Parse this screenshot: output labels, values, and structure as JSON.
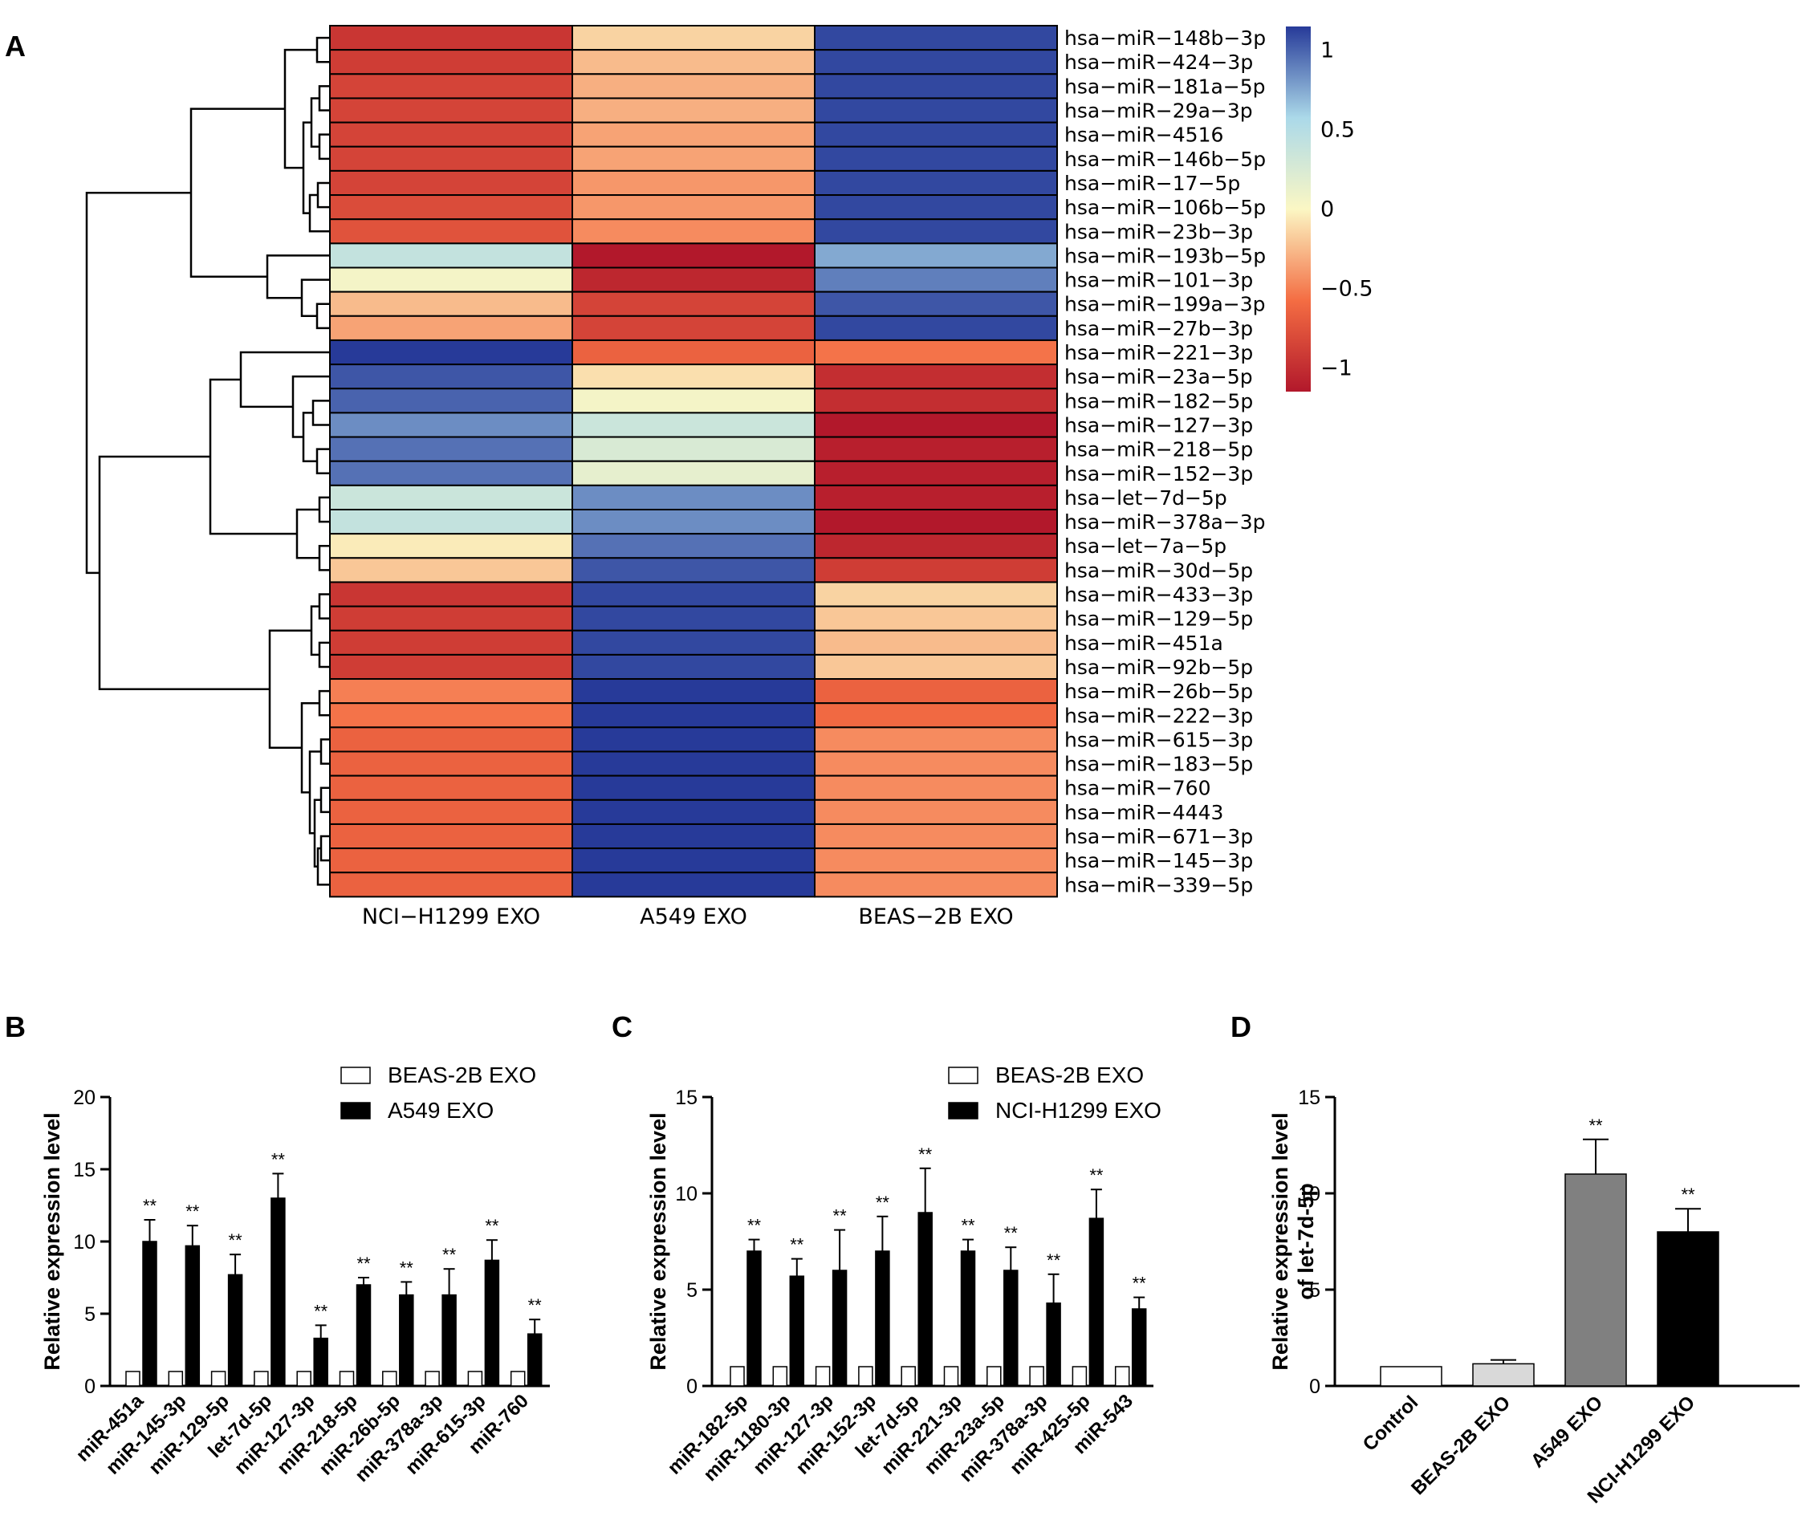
{
  "chart_data": [
    {
      "panel": "A",
      "type": "heatmap",
      "columns": [
        "NCI−H1299 EXO",
        "A549 EXO",
        "BEAS−2B EXO"
      ],
      "rows": [
        {
          "label": "hsa−miR−148b−3p",
          "values": [
            -0.95,
            -0.15,
            1.1
          ]
        },
        {
          "label": "hsa−miR−424−3p",
          "values": [
            -0.9,
            -0.25,
            1.1
          ]
        },
        {
          "label": "hsa−miR−181a−5p",
          "values": [
            -0.85,
            -0.3,
            1.1
          ]
        },
        {
          "label": "hsa−miR−29a−3p",
          "values": [
            -0.85,
            -0.3,
            1.1
          ]
        },
        {
          "label": "hsa−miR−4516",
          "values": [
            -0.85,
            -0.35,
            1.1
          ]
        },
        {
          "label": "hsa−miR−146b−5p",
          "values": [
            -0.85,
            -0.35,
            1.1
          ]
        },
        {
          "label": "hsa−miR−17−5p",
          "values": [
            -0.85,
            -0.4,
            1.1
          ]
        },
        {
          "label": "hsa−miR−106b−5p",
          "values": [
            -0.8,
            -0.4,
            1.1
          ]
        },
        {
          "label": "hsa−miR−23b−3p",
          "values": [
            -0.75,
            -0.45,
            1.1
          ]
        },
        {
          "label": "hsa−miR−193b−5p",
          "values": [
            0.4,
            -1.15,
            0.75
          ]
        },
        {
          "label": "hsa−miR−101−3p",
          "values": [
            0.05,
            -1.05,
            0.9
          ]
        },
        {
          "label": "hsa−miR−199a−3p",
          "values": [
            -0.25,
            -0.85,
            1.05
          ]
        },
        {
          "label": "hsa−miR−27b−3p",
          "values": [
            -0.35,
            -0.85,
            1.1
          ]
        },
        {
          "label": "hsa−miR−221−3p",
          "values": [
            1.15,
            -0.65,
            -0.55
          ]
        },
        {
          "label": "hsa−miR−23a−5p",
          "values": [
            1.05,
            -0.1,
            -1.0
          ]
        },
        {
          "label": "hsa−miR−182−5p",
          "values": [
            1.0,
            0.05,
            -1.0
          ]
        },
        {
          "label": "hsa−miR−127−3p",
          "values": [
            0.85,
            0.35,
            -1.15
          ]
        },
        {
          "label": "hsa−miR−218−5p",
          "values": [
            0.95,
            0.25,
            -1.1
          ]
        },
        {
          "label": "hsa−miR−152−3p",
          "values": [
            0.95,
            0.15,
            -1.1
          ]
        },
        {
          "label": "hsa−let−7d−5p",
          "values": [
            0.35,
            0.85,
            -1.1
          ]
        },
        {
          "label": "hsa−miR−378a−3p",
          "values": [
            0.4,
            0.85,
            -1.15
          ]
        },
        {
          "label": "hsa−let−7a−5p",
          "values": [
            -0.05,
            0.95,
            -1.05
          ]
        },
        {
          "label": "hsa−miR−30d−5p",
          "values": [
            -0.2,
            1.05,
            -0.9
          ]
        },
        {
          "label": "hsa−miR−433−3p",
          "values": [
            -0.95,
            1.1,
            -0.15
          ]
        },
        {
          "label": "hsa−miR−129−5p",
          "values": [
            -0.9,
            1.1,
            -0.2
          ]
        },
        {
          "label": "hsa−miR−451a",
          "values": [
            -0.9,
            1.1,
            -0.25
          ]
        },
        {
          "label": "hsa−miR−92b−5p",
          "values": [
            -0.9,
            1.1,
            -0.2
          ]
        },
        {
          "label": "hsa−miR−26b−5p",
          "values": [
            -0.5,
            1.15,
            -0.65
          ]
        },
        {
          "label": "hsa−miR−222−3p",
          "values": [
            -0.55,
            1.15,
            -0.6
          ]
        },
        {
          "label": "hsa−miR−615−3p",
          "values": [
            -0.65,
            1.15,
            -0.45
          ]
        },
        {
          "label": "hsa−miR−183−5p",
          "values": [
            -0.65,
            1.15,
            -0.45
          ]
        },
        {
          "label": "hsa−miR−760",
          "values": [
            -0.65,
            1.15,
            -0.45
          ]
        },
        {
          "label": "hsa−miR−4443",
          "values": [
            -0.65,
            1.15,
            -0.45
          ]
        },
        {
          "label": "hsa−miR−671−3p",
          "values": [
            -0.65,
            1.15,
            -0.45
          ]
        },
        {
          "label": "hsa−miR−145−3p",
          "values": [
            -0.65,
            1.15,
            -0.45
          ]
        },
        {
          "label": "hsa−miR−339−5p",
          "values": [
            -0.65,
            1.15,
            -0.45
          ]
        }
      ],
      "colorbar": {
        "ticks": [
          1,
          0.5,
          0,
          -0.5,
          -1
        ],
        "tick_labels": [
          "1",
          "0.5",
          "0",
          "−0.5",
          "−1"
        ],
        "range": [
          -1.15,
          1.15
        ]
      },
      "colors": {
        "low": "#b2182b",
        "mid": "#fbf7c4",
        "high": "#273a99"
      }
    },
    {
      "panel": "B",
      "type": "bar",
      "ylabel": "Relative expression level",
      "ylim": [
        0,
        20
      ],
      "yticks": [
        0,
        5,
        10,
        15,
        20
      ],
      "categories": [
        "miR-451a",
        "miR-145-3p",
        "miR-129-5p",
        "let-7d-5p",
        "miR-127-3p",
        "miR-218-5p",
        "miR-26b-5p",
        "miR-378a-3p",
        "miR-615-3p",
        "miR-760"
      ],
      "series": [
        {
          "name": "BEAS-2B EXO",
          "color": "#ffffff",
          "values": [
            1,
            1,
            1,
            1,
            1,
            1,
            1,
            1,
            1,
            1
          ],
          "errors": [
            0,
            0,
            0,
            0,
            0,
            0,
            0,
            0,
            0,
            0
          ]
        },
        {
          "name": "A549 EXO",
          "color": "#000000",
          "values": [
            10,
            9.7,
            7.7,
            13,
            3.3,
            7,
            6.3,
            6.3,
            8.7,
            3.6
          ],
          "errors": [
            1.5,
            1.4,
            1.4,
            1.7,
            0.9,
            0.5,
            0.9,
            1.8,
            1.4,
            1.0
          ]
        }
      ],
      "annotations": [
        "**",
        "**",
        "**",
        "**",
        "**",
        "**",
        "**",
        "**",
        "**",
        "**"
      ]
    },
    {
      "panel": "C",
      "type": "bar",
      "ylabel": "Relative expression level",
      "ylim": [
        0,
        15
      ],
      "yticks": [
        0,
        5,
        10,
        15
      ],
      "categories": [
        "miR-182-5p",
        "miR-1180-3p",
        "miR-127-3p",
        "miR-152-3p",
        "let-7d-5p",
        "miR-221-3p",
        "miR-23a-5p",
        "miR-378a-3p",
        "miR-425-5p",
        "miR-543"
      ],
      "series": [
        {
          "name": "BEAS-2B EXO",
          "color": "#ffffff",
          "values": [
            1,
            1,
            1,
            1,
            1,
            1,
            1,
            1,
            1,
            1
          ],
          "errors": [
            0,
            0,
            0,
            0,
            0,
            0,
            0,
            0,
            0,
            0
          ]
        },
        {
          "name": "NCI-H1299 EXO",
          "color": "#000000",
          "values": [
            7,
            5.7,
            6,
            7,
            9,
            7,
            6,
            4.3,
            8.7,
            4
          ],
          "errors": [
            0.6,
            0.9,
            2.1,
            1.8,
            2.3,
            0.6,
            1.2,
            1.5,
            1.5,
            0.6
          ]
        }
      ],
      "annotations": [
        "**",
        "**",
        "**",
        "**",
        "**",
        "**",
        "**",
        "**",
        "**",
        "**"
      ]
    },
    {
      "panel": "D",
      "type": "bar",
      "ylabel": [
        "Relative expression level",
        "of let-7d-5p"
      ],
      "ylim": [
        0,
        15
      ],
      "yticks": [
        0,
        5,
        10,
        15
      ],
      "categories": [
        "Control",
        "BEAS-2B EXO",
        "A549 EXO",
        "NCI-H1299 EXO"
      ],
      "values": [
        1,
        1.15,
        11,
        8
      ],
      "errors": [
        0,
        0.2,
        1.8,
        1.2
      ],
      "colors": [
        "#ffffff",
        "#d9d9d9",
        "#808080",
        "#000000"
      ],
      "annotations": [
        "",
        "",
        "**",
        "**"
      ]
    }
  ],
  "panel_labels": {
    "a": "A",
    "b": "B",
    "c": "C",
    "d": "D"
  }
}
